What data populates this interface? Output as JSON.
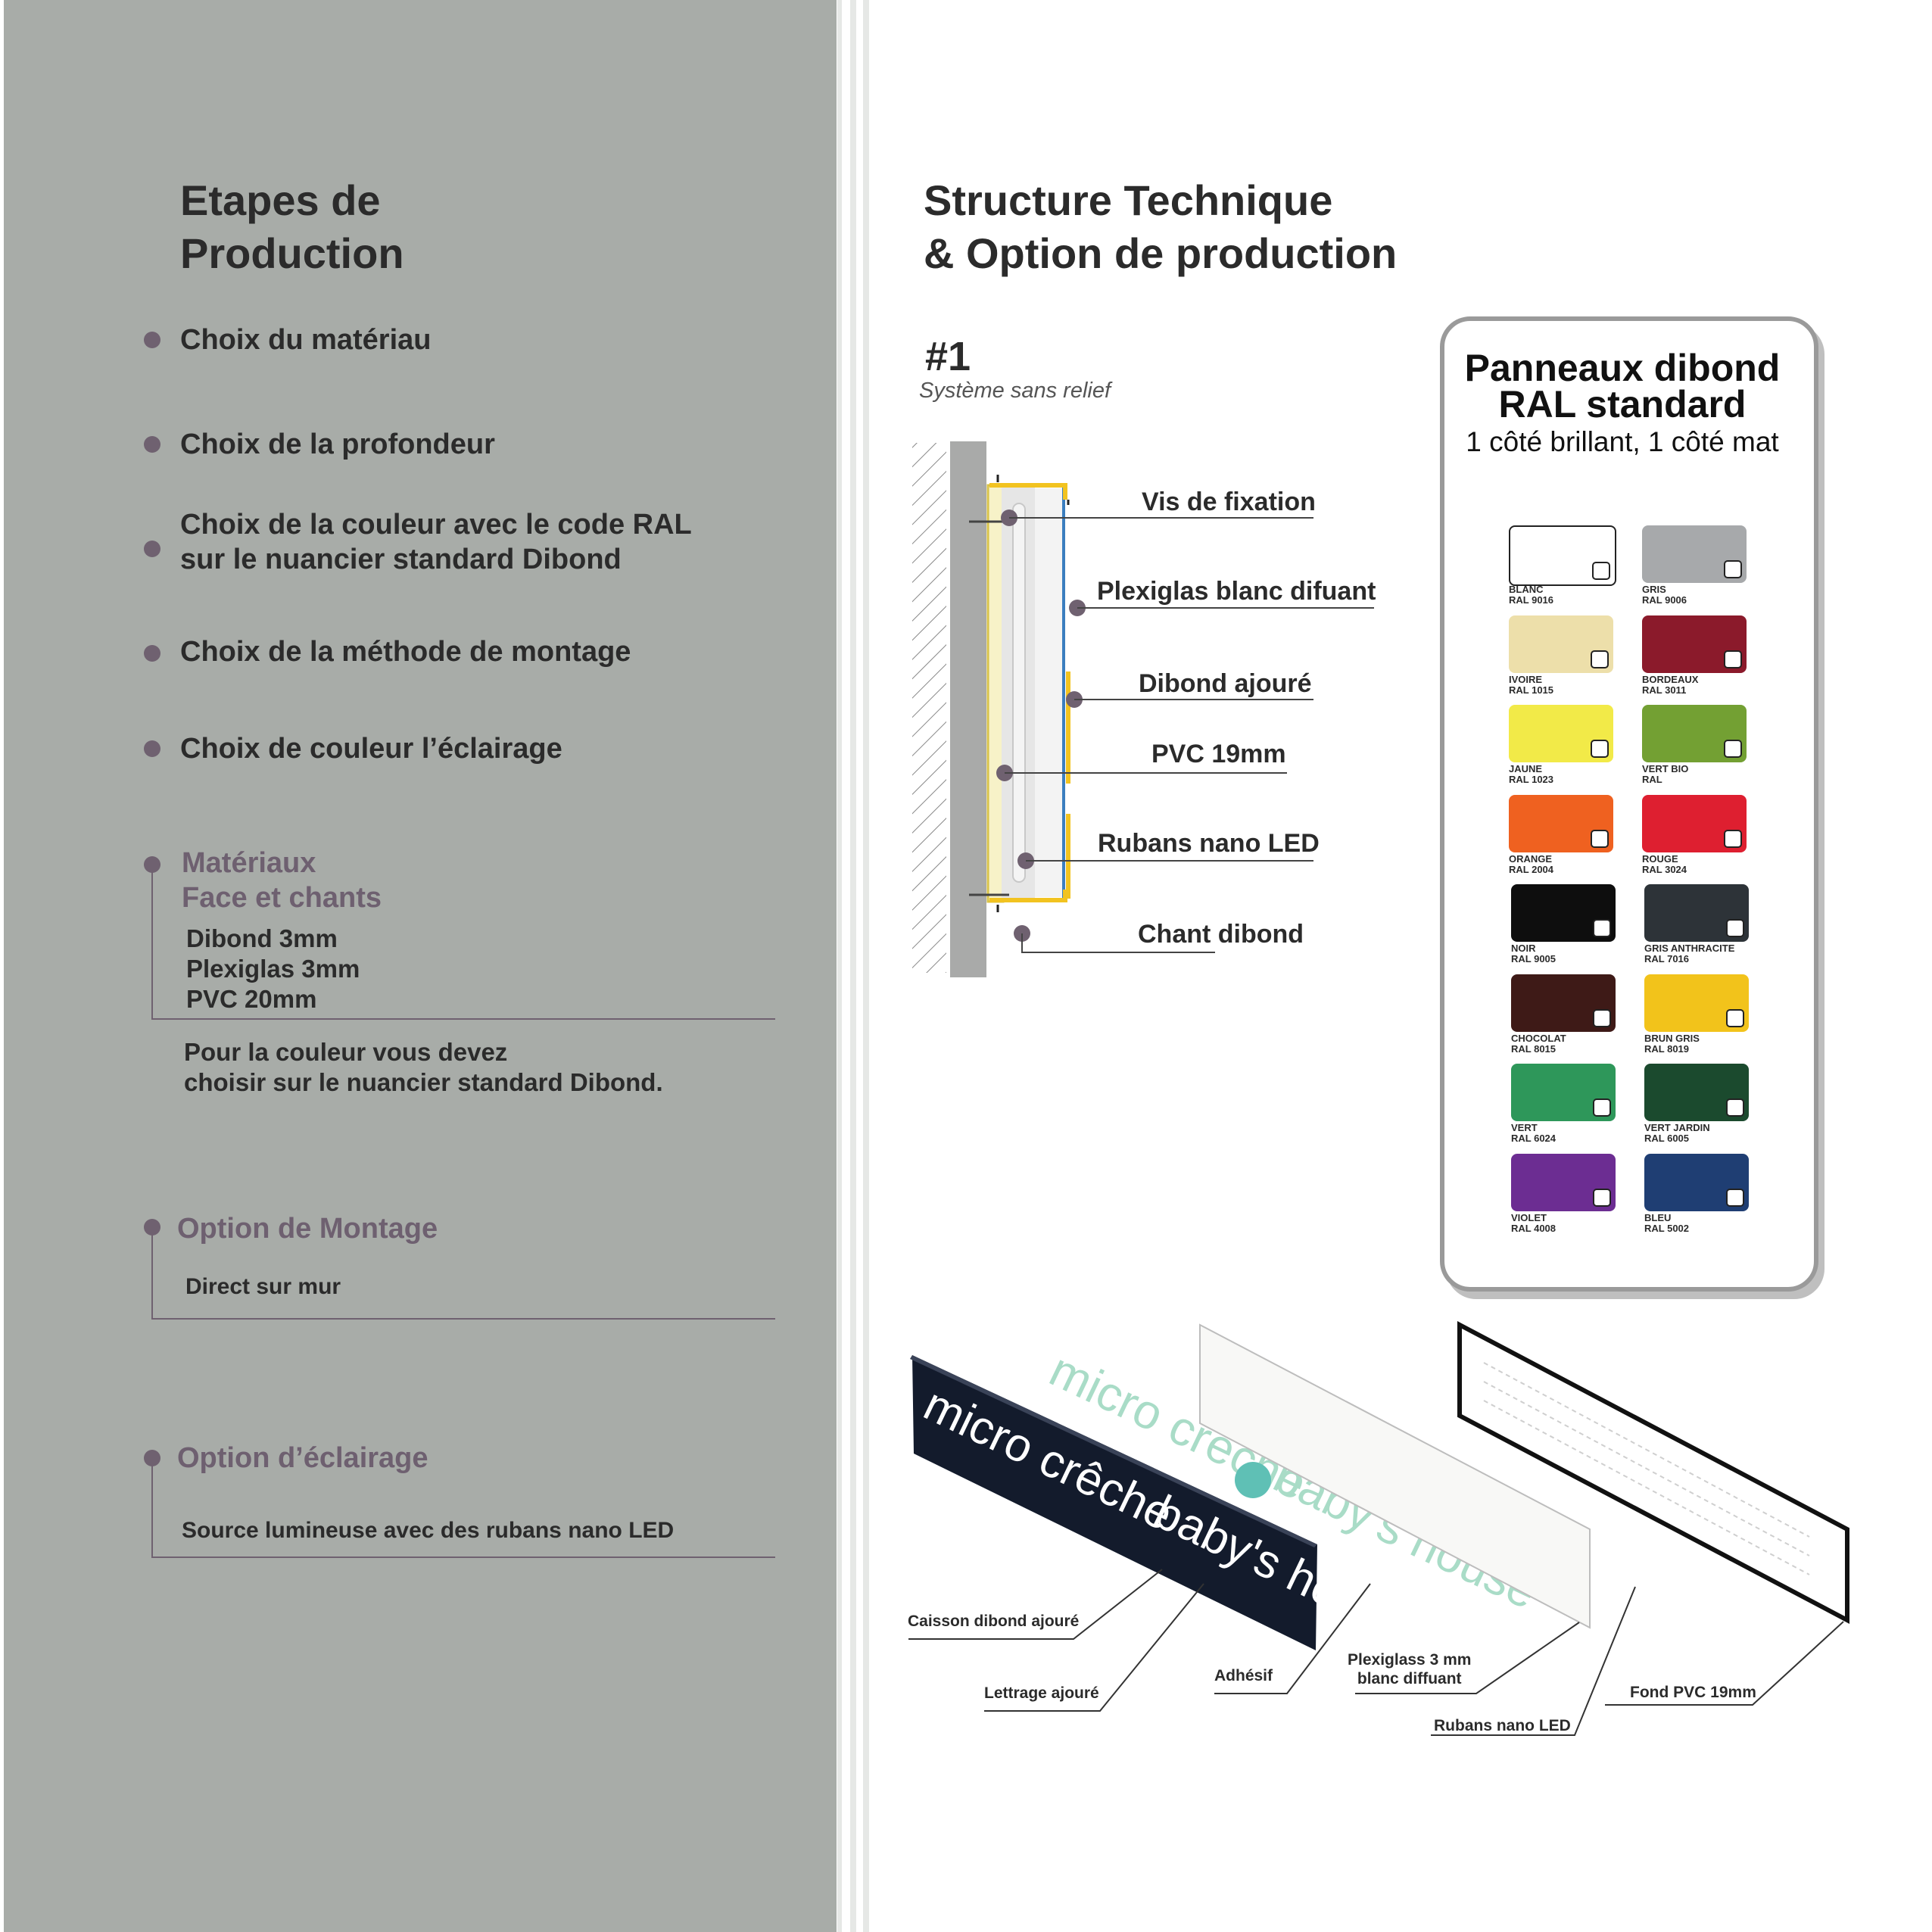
{
  "left": {
    "title_line1": "Etapes de",
    "title_line2": "Production",
    "steps": [
      "Choix du matériau",
      "Choix de la profondeur",
      "Choix de la couleur avec le code RAL",
      "sur le nuancier standard Dibond",
      "Choix de la méthode de montage",
      "Choix de couleur l’éclairage"
    ],
    "materiaux": {
      "title1": "Matériaux",
      "title2": "Face et chants",
      "items": [
        "Dibond 3mm",
        "Plexiglas 3mm",
        "PVC 20mm"
      ],
      "note1": "Pour la couleur vous devez",
      "note2": "choisir sur le nuancier standard Dibond."
    },
    "montage": {
      "title": "Option de Montage",
      "text": "Direct sur mur"
    },
    "eclairage": {
      "title": "Option d’éclairage",
      "text": "Source lumineuse avec des rubans nano LED"
    }
  },
  "right": {
    "title_line1": "Structure Technique",
    "title_line2": "& Option de production",
    "system_number": "#1",
    "system_name": "Système sans relief",
    "section_labels": [
      "Vis de fixation",
      "Plexiglas blanc difuant",
      "Dibond ajouré",
      "PVC 19mm",
      "Rubans nano LED",
      "Chant dibond"
    ],
    "ral": {
      "title1": "Panneaux dibond",
      "title2": "RAL standard",
      "subtitle": "1 côté brillant, 1 côté mat",
      "swatches": [
        {
          "name": "BLANC",
          "code": "RAL 9016",
          "color": "#ffffff"
        },
        {
          "name": "GRIS",
          "code": "RAL 9006",
          "color": "#a7a9ab"
        },
        {
          "name": "IVOIRE",
          "code": "RAL 1015",
          "color": "#eddfaa"
        },
        {
          "name": "BORDEAUX",
          "code": "RAL 3011",
          "color": "#8b1a2b"
        },
        {
          "name": "JAUNE",
          "code": "RAL 1023",
          "color": "#f2ea48"
        },
        {
          "name": "VERT BIO",
          "code": "RAL",
          "color": "#73a033"
        },
        {
          "name": "ORANGE",
          "code": "RAL 2004",
          "color": "#ef6120"
        },
        {
          "name": "ROUGE",
          "code": "RAL 3024",
          "color": "#de1f30"
        },
        {
          "name": "NOIR",
          "code": "RAL 9005",
          "color": "#0e0e0e"
        },
        {
          "name": "GRIS ANTHRACITE",
          "code": "RAL 7016",
          "color": "#2d3338"
        },
        {
          "name": "CHOCOLAT",
          "code": "RAL 8015",
          "color": "#3e1a17"
        },
        {
          "name": "BRUN GRIS",
          "code": "RAL 8019",
          "color": "#f2c31b"
        },
        {
          "name": "VERT",
          "code": "RAL 6024",
          "color": "#2e975a"
        },
        {
          "name": "VERT JARDIN",
          "code": "RAL 6005",
          "color": "#1b4a2e"
        },
        {
          "name": "VIOLET",
          "code": "RAL 4008",
          "color": "#6c2d92"
        },
        {
          "name": "BLEU",
          "code": "RAL 5002",
          "color": "#1f3e73"
        }
      ]
    },
    "exploded": {
      "sign_text_1": "micro crêche",
      "sign_text_2": "baby's house",
      "labels": [
        "Caisson dibond ajouré",
        "Lettrage ajouré",
        "Adhésif",
        "Plexiglass 3 mm",
        "blanc diffuant",
        "Rubans nano LED",
        "Fond PVC 19mm"
      ]
    }
  }
}
